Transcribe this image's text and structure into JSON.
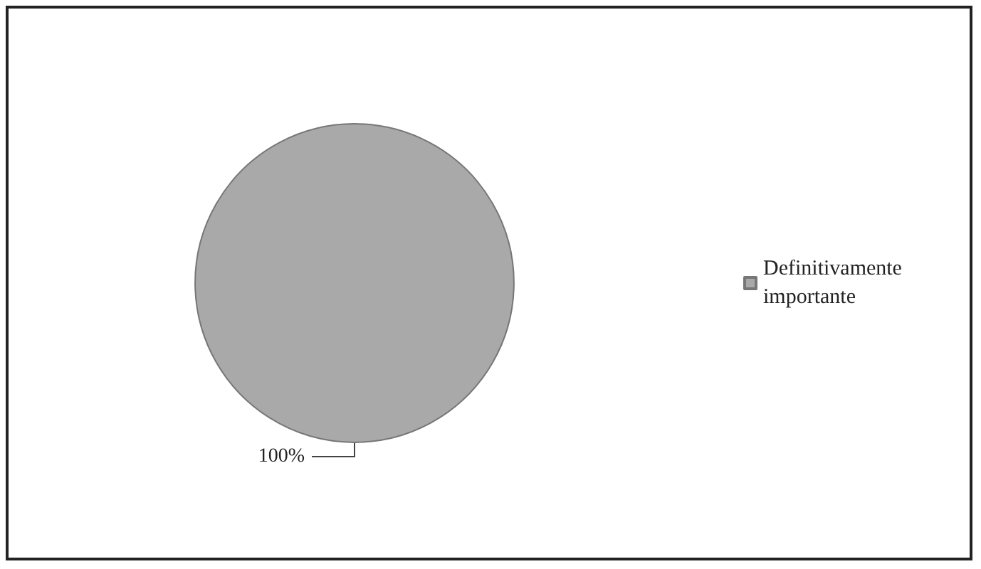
{
  "chart_data": {
    "type": "pie",
    "categories": [
      "Definitivamente importante"
    ],
    "values": [
      100
    ],
    "colors": [
      "#a9a9a9"
    ],
    "value_labels": [
      "100%"
    ],
    "legend": "right"
  }
}
